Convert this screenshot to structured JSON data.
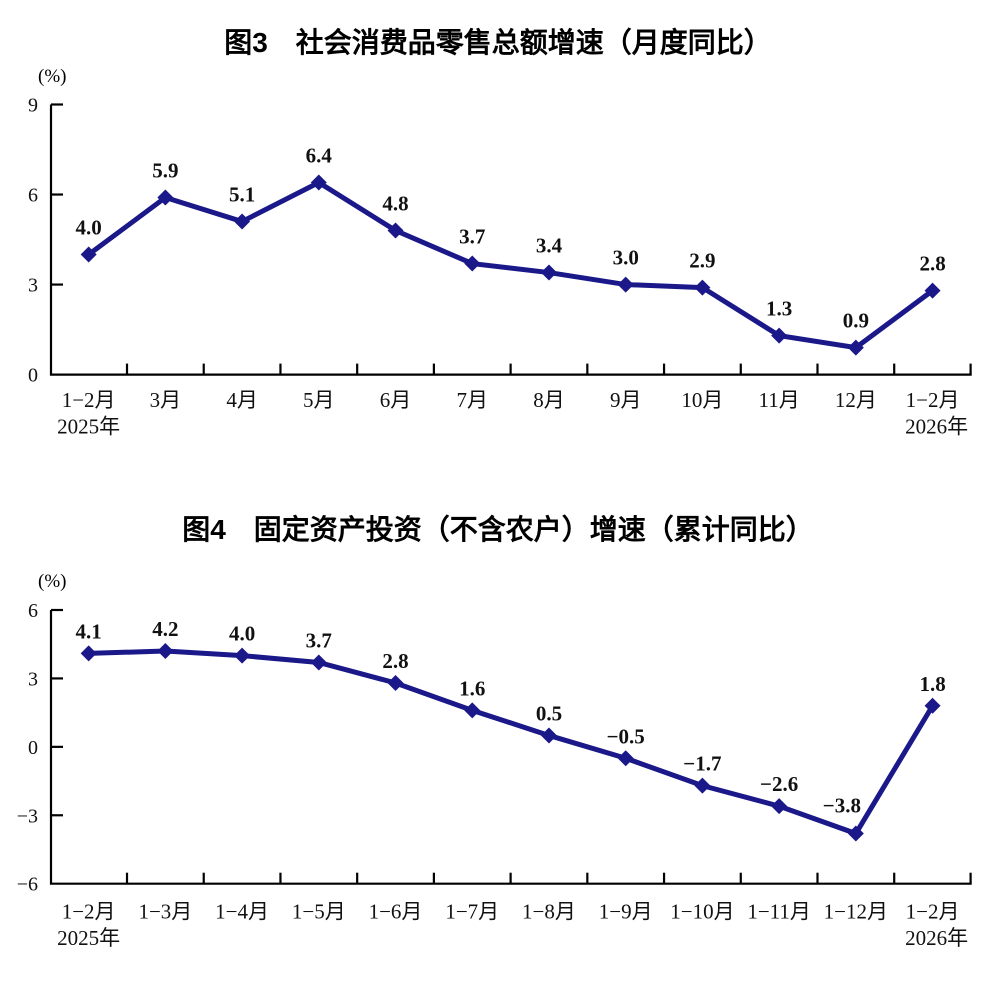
{
  "page": {
    "background_color": "#ffffff",
    "text_color": "#000000"
  },
  "chart_data": [
    {
      "type": "line",
      "title": "图3　社会消费品零售总额增速（月度同比）",
      "unit_label": "(%)",
      "xlabel": "",
      "ylabel": "(%)",
      "categories": [
        "1-2月",
        "3月",
        "4月",
        "5月",
        "6月",
        "7月",
        "8月",
        "9月",
        "10月",
        "11月",
        "12月",
        "1-2月"
      ],
      "category_sublabels": {
        "first": "2025年",
        "last": "2026年"
      },
      "values": [
        4.0,
        5.9,
        5.1,
        6.4,
        4.8,
        3.7,
        3.4,
        3.0,
        2.9,
        1.3,
        0.9,
        2.8
      ],
      "value_labels": [
        "4.0",
        "5.9",
        "5.1",
        "6.4",
        "4.8",
        "3.7",
        "3.4",
        "3.0",
        "2.9",
        "1.3",
        "0.9",
        "2.8"
      ],
      "ylim": [
        0,
        9
      ],
      "yticks": [
        0,
        3,
        6,
        9
      ],
      "ytick_labels": [
        "0",
        "3",
        "6",
        "9"
      ],
      "line_color": "#1b1889",
      "marker": "diamond",
      "grid": false,
      "legend": null
    },
    {
      "type": "line",
      "title": "图4　固定资产投资（不含农户）增速（累计同比）",
      "unit_label": "(%)",
      "xlabel": "",
      "ylabel": "(%)",
      "categories": [
        "1-2月",
        "1-3月",
        "1-4月",
        "1-5月",
        "1-6月",
        "1-7月",
        "1-8月",
        "1-9月",
        "1-10月",
        "1-11月",
        "1-12月",
        "1-2月"
      ],
      "category_sublabels": {
        "first": "2025年",
        "last": "2026年"
      },
      "values": [
        4.1,
        4.2,
        4.0,
        3.7,
        2.8,
        1.6,
        0.5,
        -0.5,
        -1.7,
        -2.6,
        -3.8,
        1.8
      ],
      "value_labels": [
        "4.1",
        "4.2",
        "4.0",
        "3.7",
        "2.8",
        "1.6",
        "0.5",
        "-0.5",
        "-1.7",
        "-2.6",
        "-3.8",
        "1.8"
      ],
      "ylim": [
        -6,
        6
      ],
      "yticks": [
        -6,
        -3,
        0,
        3,
        6
      ],
      "ytick_labels": [
        "-6",
        "-3",
        "0",
        "3",
        "6"
      ],
      "line_color": "#1b1889",
      "marker": "diamond",
      "grid": false,
      "legend": null
    }
  ]
}
